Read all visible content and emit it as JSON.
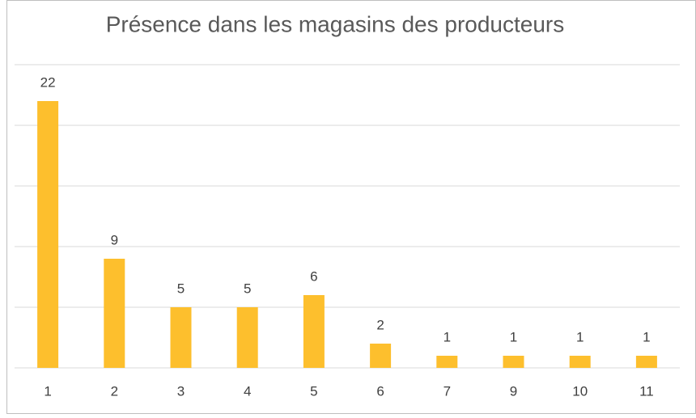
{
  "chart_data": {
    "type": "bar",
    "title": "Présence dans les magasins des producteurs",
    "categories": [
      "1",
      "2",
      "3",
      "4",
      "5",
      "6",
      "7",
      "9",
      "10",
      "11"
    ],
    "values": [
      22,
      9,
      5,
      5,
      6,
      2,
      1,
      1,
      1,
      1
    ],
    "color": "#fdbf2d",
    "ylim": [
      0,
      25
    ],
    "yticks": [
      0,
      5,
      10,
      15,
      20,
      25
    ],
    "grid": true
  }
}
